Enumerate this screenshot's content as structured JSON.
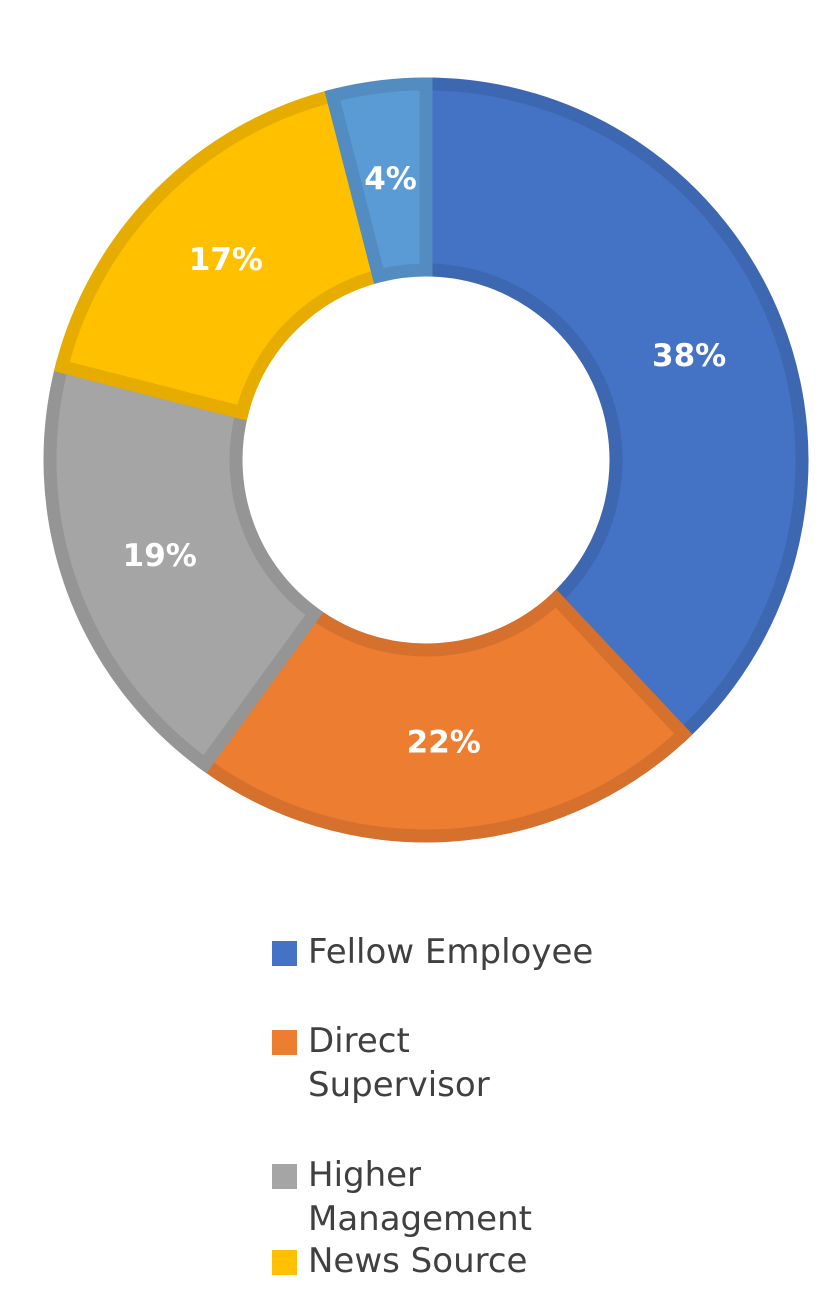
{
  "chart_data": {
    "type": "pie",
    "variant": "donut",
    "categories": [
      "Fellow Employee",
      "Direct Supervisor",
      "Higher Management",
      "News Source",
      ""
    ],
    "values": [
      38,
      22,
      19,
      17,
      4
    ],
    "value_labels": [
      "38%",
      "22%",
      "19%",
      "17%",
      "4%"
    ],
    "colors": [
      "#4472C4",
      "#ED7D31",
      "#A5A5A5",
      "#FFC000",
      "#5B9BD5"
    ],
    "border_colors": [
      "#3E67B1",
      "#D5712C",
      "#959595",
      "#E6AD00",
      "#528CC0"
    ],
    "legend_position": "bottom",
    "title": ""
  },
  "legend": {
    "items": [
      {
        "label": "Fellow Employee",
        "color": "#4472C4"
      },
      {
        "label": "Direct Supervisor",
        "color": "#ED7D31"
      },
      {
        "label": "Higher Management",
        "color": "#A5A5A5"
      },
      {
        "label": "News Source",
        "color": "#FFC000"
      }
    ]
  }
}
